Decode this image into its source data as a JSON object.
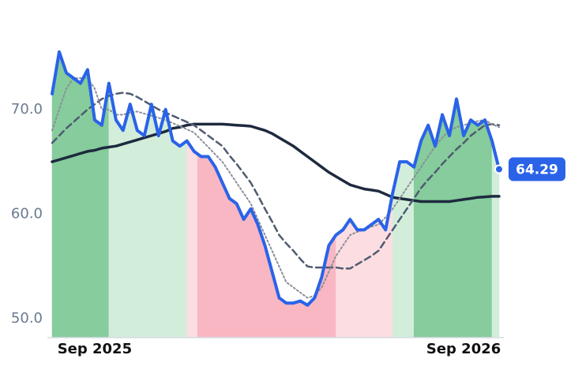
{
  "chart_data": {
    "type": "line",
    "categories": [
      null,
      null,
      null,
      null,
      null,
      null,
      "Sep 2025",
      null,
      null,
      null,
      null,
      null,
      null,
      null,
      null,
      null,
      null,
      null,
      null,
      null,
      null,
      null,
      null,
      null,
      null,
      null,
      null,
      null,
      null,
      null,
      null,
      null,
      null,
      null,
      null,
      null,
      null,
      null,
      null,
      null,
      null,
      null,
      null,
      null,
      null,
      null,
      null,
      null,
      null,
      null,
      null,
      null,
      null,
      null,
      null,
      null,
      null,
      null,
      "Sep 2026",
      null,
      null,
      null,
      null,
      null
    ],
    "series": [
      {
        "color": "#2a63e8",
        "style": "solid",
        "width": 4,
        "values": [
          71.5,
          75.5,
          73.5,
          73.0,
          72.5,
          73.8,
          69.0,
          68.5,
          72.5,
          69.0,
          68.0,
          70.5,
          68.0,
          67.5,
          70.5,
          67.5,
          70.0,
          67.0,
          66.5,
          67.0,
          66.0,
          65.5,
          65.5,
          64.5,
          63.0,
          61.5,
          61.0,
          59.5,
          60.5,
          59.0,
          57.0,
          54.5,
          52.0,
          51.5,
          51.5,
          51.7,
          51.3,
          52.0,
          54.0,
          57.0,
          58.0,
          58.5,
          59.5,
          58.5,
          58.5,
          59.0,
          59.5,
          58.5,
          62.0,
          65.0,
          65.0,
          64.5,
          67.0,
          68.5,
          66.5,
          69.5,
          67.5,
          71.0,
          67.5,
          69.0,
          68.5,
          69.0,
          67.0,
          64.29
        ]
      },
      {
        "color": "#8a8f99",
        "style": "dotted",
        "width": 2,
        "values": [
          68,
          70,
          72,
          73,
          73,
          73,
          72,
          70,
          70,
          69.5,
          69.5,
          69.7,
          69.8,
          69.6,
          69.4,
          69.2,
          69,
          68.7,
          68.4,
          68.1,
          67.8,
          67.1,
          66.4,
          65.7,
          65,
          64,
          63,
          62,
          61,
          59.5,
          58,
          56.5,
          55,
          53.5,
          53,
          52.5,
          52,
          52.2,
          53,
          54.5,
          56,
          57,
          58,
          58.3,
          58.5,
          58.8,
          59,
          59.7,
          60.5,
          61.5,
          62.5,
          63.5,
          64.5,
          65.5,
          66.5,
          67.3,
          68,
          68.3,
          68.5,
          68.7,
          68.9,
          69,
          68.6,
          68.3
        ]
      },
      {
        "color": "#4f5b70",
        "style": "dashed",
        "width": 2.5,
        "values": [
          66.8,
          67.5,
          68.2,
          68.8,
          69.4,
          70,
          70.5,
          71,
          71.3,
          71.5,
          71.6,
          71.5,
          71.2,
          70.8,
          70.4,
          70,
          69.7,
          69.4,
          69.1,
          68.8,
          68.5,
          68.0,
          67.5,
          67.0,
          66.5,
          65.6,
          64.8,
          63.9,
          63,
          61.8,
          60.5,
          59.3,
          58,
          57.2,
          56.5,
          55.7,
          55,
          54.9,
          54.9,
          54.9,
          54.9,
          54.8,
          54.8,
          55.2,
          55.6,
          56,
          56.5,
          57.5,
          58.5,
          59.5,
          60.5,
          61.5,
          62.5,
          63.3,
          64,
          64.8,
          65.5,
          66.2,
          66.8,
          67.5,
          68,
          68.5,
          68.6,
          68.5
        ]
      },
      {
        "color": "#1e2a3f",
        "style": "solid",
        "width": 3.5,
        "values": [
          65,
          65.2,
          65.4,
          65.6,
          65.8,
          66,
          66.1,
          66.3,
          66.4,
          66.5,
          66.7,
          66.9,
          67.1,
          67.3,
          67.5,
          67.7,
          67.9,
          68.2,
          68.3,
          68.5,
          68.6,
          68.6,
          68.6,
          68.6,
          68.6,
          68.55,
          68.5,
          68.45,
          68.4,
          68.2,
          68,
          67.7,
          67.3,
          66.9,
          66.5,
          66,
          65.5,
          65,
          64.5,
          64,
          63.6,
          63.2,
          62.8,
          62.6,
          62.4,
          62.3,
          62.2,
          61.9,
          61.6,
          61.5,
          61.4,
          61.3,
          61.2,
          61.2,
          61.2,
          61.2,
          61.2,
          61.3,
          61.4,
          61.5,
          61.6,
          61.65,
          61.7,
          61.7
        ]
      }
    ],
    "regions": [
      {
        "from": 0,
        "to": 8,
        "color": "#86cc9c"
      },
      {
        "from": 8,
        "to": 19,
        "color": "#d2eedb"
      },
      {
        "from": 19,
        "to": 20.5,
        "color": "#fcdde2"
      },
      {
        "from": 20.5,
        "to": 40,
        "color": "#f8b7c2"
      },
      {
        "from": 40,
        "to": 48,
        "color": "#fcdde2"
      },
      {
        "from": 48,
        "to": 51,
        "color": "#d2eedb"
      },
      {
        "from": 51,
        "to": 62,
        "color": "#86cc9c"
      },
      {
        "from": 62,
        "to": 63,
        "color": "#d2eedb"
      }
    ],
    "ylim": [
      48.2,
      78.2
    ],
    "yticks": [
      {
        "value": 50,
        "label": "50.0"
      },
      {
        "value": 60,
        "label": "60.0"
      },
      {
        "value": 70,
        "label": "70.0"
      }
    ]
  }
}
